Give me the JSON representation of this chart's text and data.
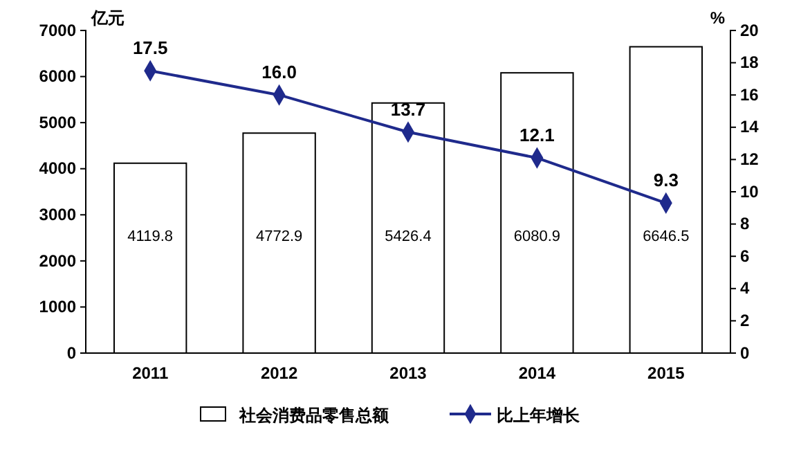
{
  "chart_data": {
    "type": "bar",
    "categories": [
      "2011",
      "2012",
      "2013",
      "2014",
      "2015"
    ],
    "ylabel": "亿元",
    "y2label": "%",
    "series": [
      {
        "name": "社会消费品零售总额",
        "color": "#ffffff",
        "values": [
          4119.8,
          4772.9,
          5426.4,
          6080.9,
          6646.5
        ]
      },
      {
        "name": "比上年增长",
        "type": "line",
        "axis": "y2",
        "color": "#1f2a8c",
        "values": [
          17.5,
          16.0,
          13.7,
          12.1,
          9.3
        ],
        "value_labels": [
          "17.5",
          "16.0",
          "13.7",
          "12.1",
          "9.3"
        ]
      }
    ],
    "data_labels": true,
    "marker": "diamond",
    "line_style": "solid",
    "grid": false,
    "legend": "bottom",
    "ylim": [
      0,
      7000
    ],
    "yticks": [
      0,
      1000,
      2000,
      3000,
      4000,
      5000,
      6000,
      7000
    ],
    "y2lim": [
      0,
      20
    ],
    "y2ticks": [
      0,
      2,
      4,
      6,
      8,
      10,
      12,
      14,
      16,
      18,
      20
    ]
  }
}
